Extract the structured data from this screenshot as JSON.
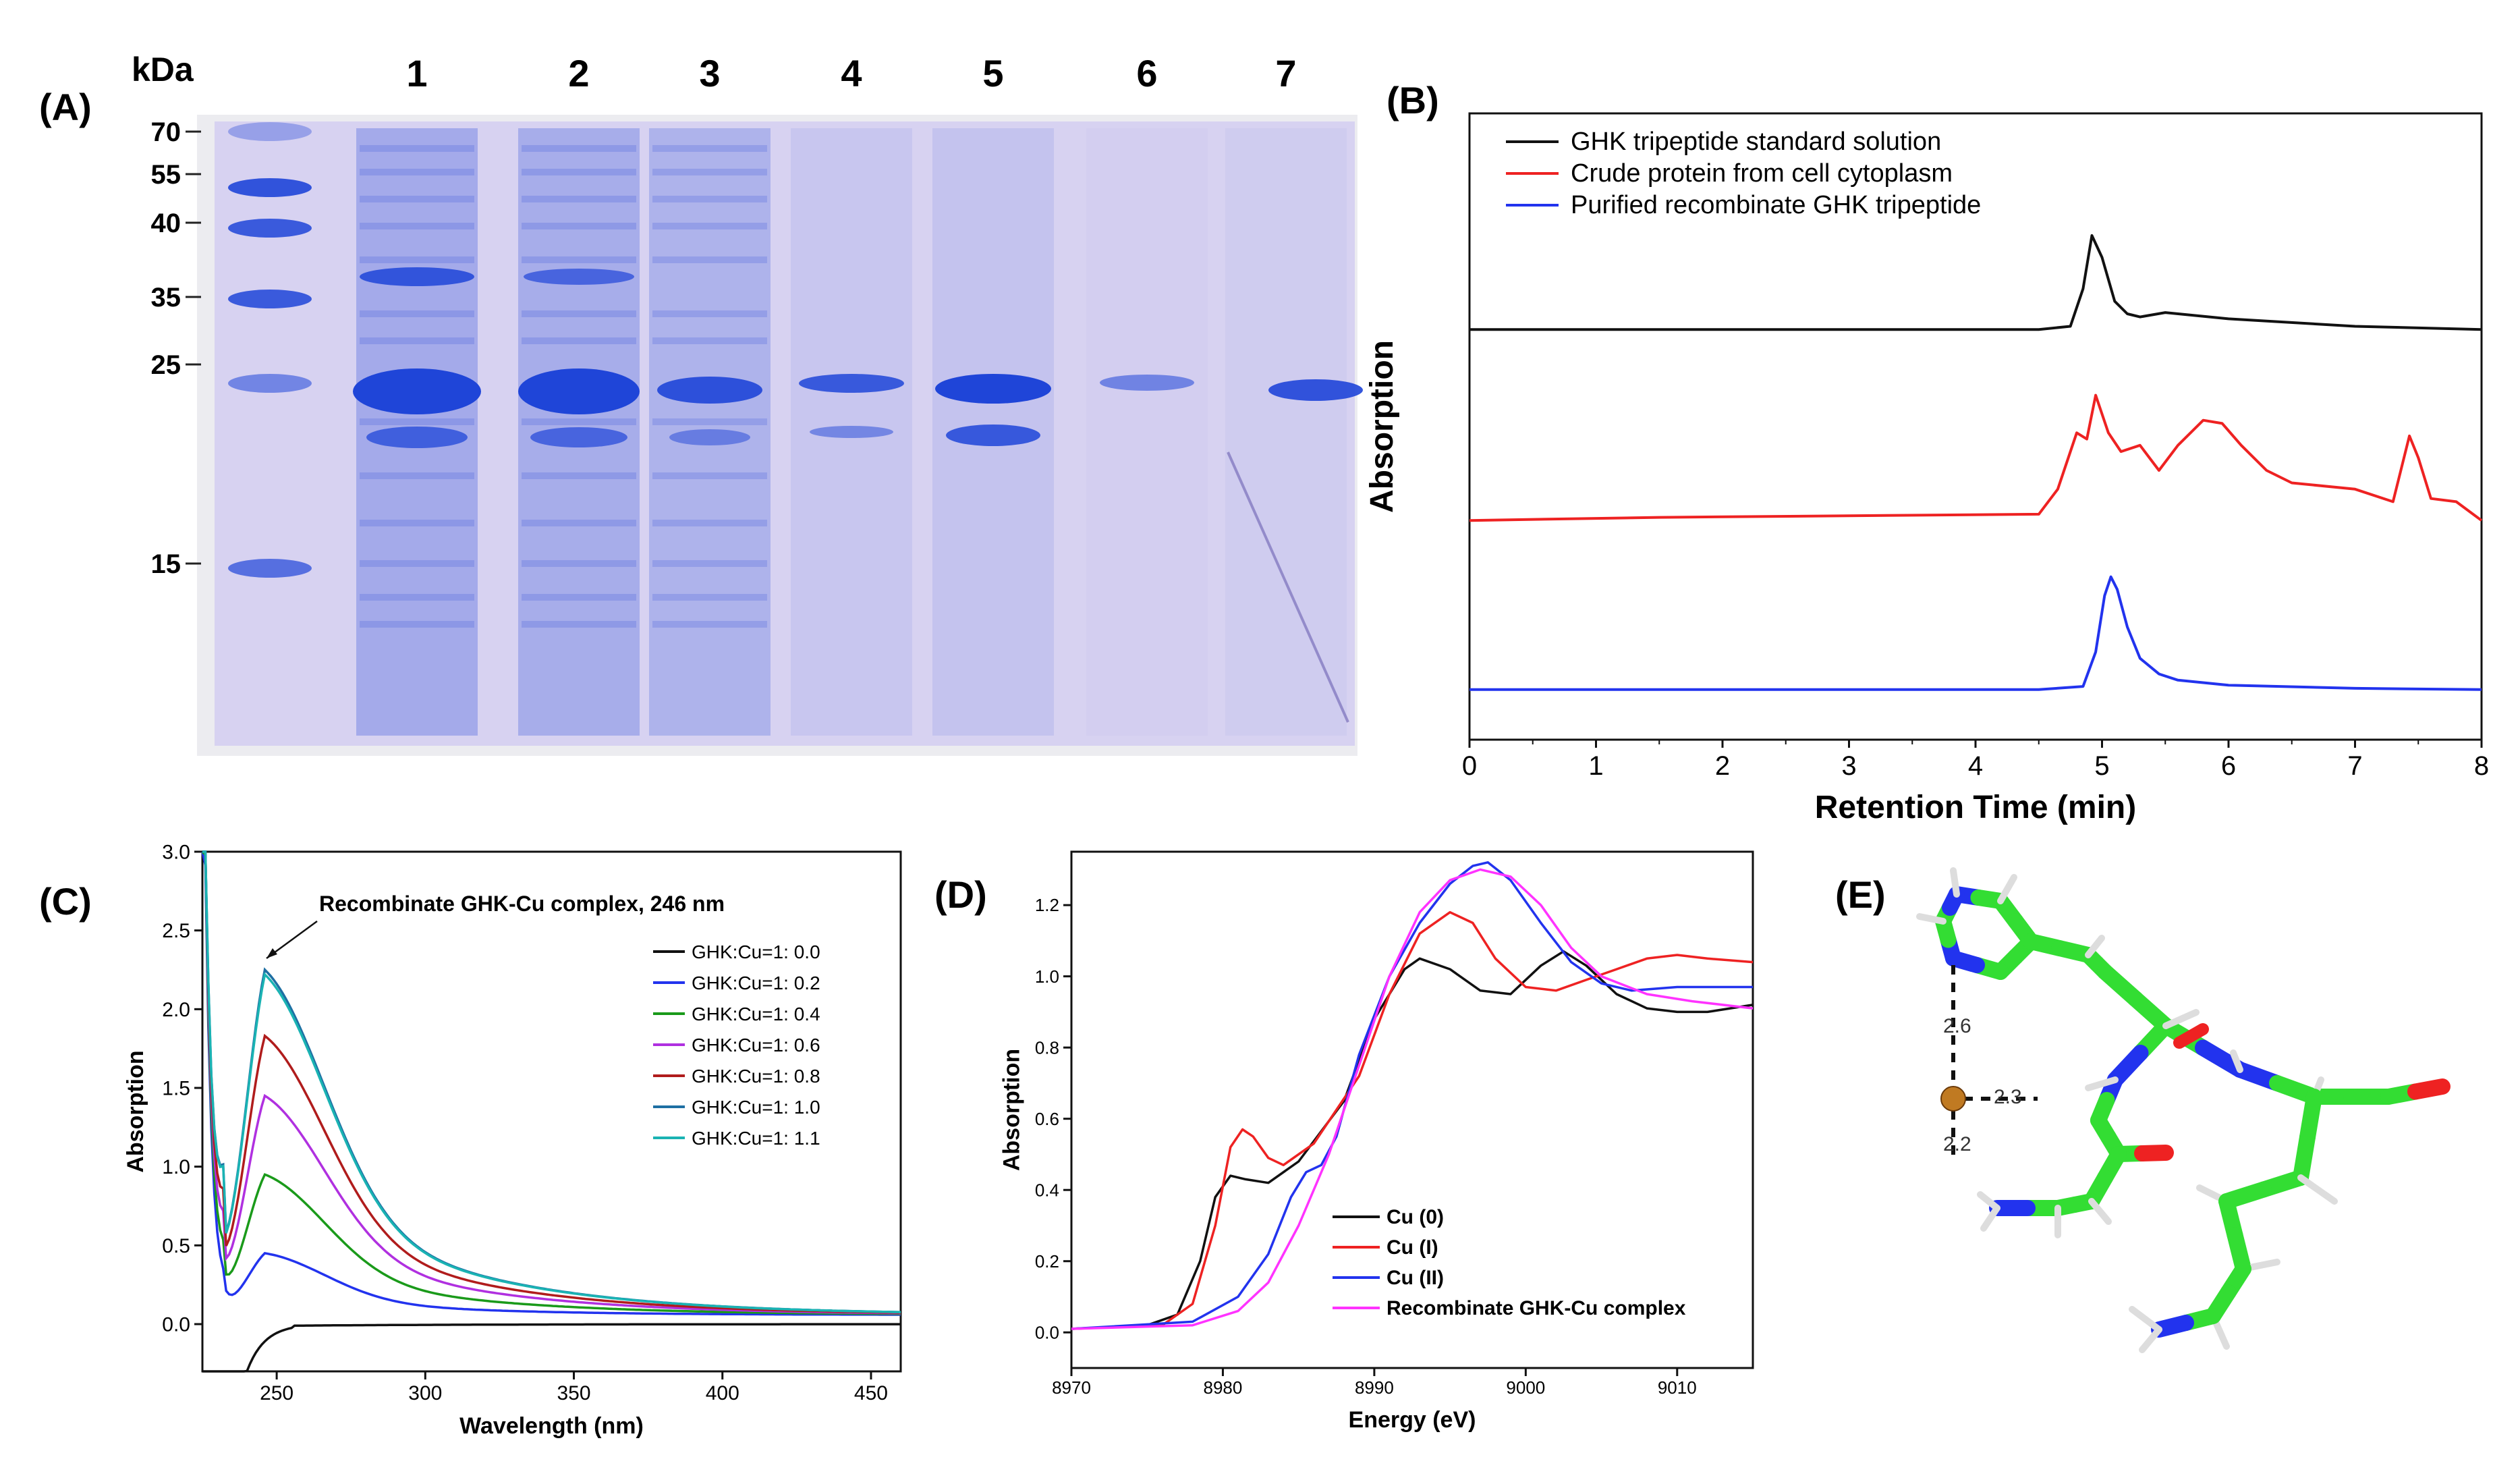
{
  "colors": {
    "gel_bg": "#d7d2f1",
    "band": "#1f45d8",
    "black": "#111111",
    "red": "#ee2222",
    "blue": "#2233ee",
    "green": "#1a9a1a",
    "purple": "#b030e0",
    "darkred": "#b01c1c",
    "steelblue": "#1e6fa3",
    "cyan": "#1ab3b3",
    "magenta": "#ff33ff",
    "carbon": "#33dd33",
    "nitrogen": "#2233ee",
    "oxygen": "#ee2222",
    "hydrogen": "#dddddd",
    "copper": "#c07a22"
  },
  "panels": {
    "a": {
      "label": "(A)",
      "kda_label": "kDa",
      "lanes": [
        "1",
        "2",
        "3",
        "4",
        "5",
        "6",
        "7"
      ],
      "markers": [
        "70",
        "55",
        "40",
        "35",
        "25",
        "15"
      ],
      "marker_kda": [
        70,
        55,
        40,
        35,
        25,
        15
      ]
    },
    "b": {
      "label": "(B)"
    },
    "c": {
      "label": "(C)"
    },
    "d": {
      "label": "(D)"
    },
    "e": {
      "label": "(E)",
      "distances": [
        "2.6",
        "2.3",
        "2.2"
      ]
    }
  },
  "chart_data": [
    {
      "id": "B",
      "type": "line",
      "title": "",
      "xlabel": "Retention Time (min)",
      "ylabel": "Absorption",
      "xlim": [
        0,
        8
      ],
      "xticks": [
        "0",
        "1",
        "2",
        "3",
        "4",
        "5",
        "6",
        "7",
        "8"
      ],
      "yticks": [],
      "legend_position": "top-left",
      "series": [
        {
          "name": "GHK tripeptide standard solution",
          "color": "#111111",
          "x": [
            0,
            4.5,
            4.75,
            4.85,
            4.92,
            5.0,
            5.1,
            5.2,
            5.3,
            5.5,
            6.0,
            7.0,
            8.0
          ],
          "y": [
            6.55,
            6.55,
            6.6,
            7.2,
            8.05,
            7.7,
            7.0,
            6.8,
            6.75,
            6.82,
            6.72,
            6.6,
            6.55
          ]
        },
        {
          "name": "Crude protein from cell cytoplasm",
          "color": "#ee2222",
          "x": [
            0,
            1.5,
            4.5,
            4.65,
            4.8,
            4.88,
            4.95,
            5.05,
            5.15,
            5.3,
            5.45,
            5.6,
            5.8,
            5.95,
            6.1,
            6.3,
            6.5,
            7.0,
            7.3,
            7.43,
            7.5,
            7.6,
            7.8,
            8.0
          ],
          "y": [
            3.5,
            3.55,
            3.6,
            4.0,
            4.9,
            4.8,
            5.5,
            4.9,
            4.6,
            4.7,
            4.3,
            4.7,
            5.1,
            5.05,
            4.7,
            4.3,
            4.1,
            4.0,
            3.8,
            4.85,
            4.5,
            3.85,
            3.8,
            3.5
          ]
        },
        {
          "name": "Purified recombinate GHK tripeptide",
          "color": "#2233ee",
          "x": [
            0,
            4.5,
            4.85,
            4.95,
            5.02,
            5.07,
            5.12,
            5.2,
            5.3,
            5.45,
            5.6,
            6.0,
            7.0,
            8.0
          ],
          "y": [
            0.8,
            0.8,
            0.85,
            1.4,
            2.3,
            2.6,
            2.4,
            1.8,
            1.3,
            1.05,
            0.95,
            0.87,
            0.82,
            0.8
          ]
        }
      ]
    },
    {
      "id": "C",
      "type": "line",
      "title": "",
      "annotation": "Recombinate GHK-Cu complex, 246 nm",
      "xlabel": "Wavelength (nm)",
      "ylabel": "Absorption",
      "xlim": [
        225,
        460
      ],
      "ylim": [
        -0.3,
        3.0
      ],
      "xticks": [
        "250",
        "300",
        "350",
        "400",
        "450"
      ],
      "yticks": [
        "0.0",
        "0.5",
        "1.0",
        "1.5",
        "2.0",
        "2.5",
        "3.0"
      ],
      "legend_position": "center-right",
      "series": [
        {
          "name": "GHK:Cu=1: 0.0",
          "color": "#111111",
          "ratio": 0.0,
          "peak": 0.0
        },
        {
          "name": "GHK:Cu=1: 0.2",
          "color": "#2233ee",
          "ratio": 0.2,
          "peak": 0.45
        },
        {
          "name": "GHK:Cu=1: 0.4",
          "color": "#1a9a1a",
          "ratio": 0.4,
          "peak": 0.95
        },
        {
          "name": "GHK:Cu=1: 0.6",
          "color": "#b030e0",
          "ratio": 0.6,
          "peak": 1.45
        },
        {
          "name": "GHK:Cu=1: 0.8",
          "color": "#b01c1c",
          "ratio": 0.8,
          "peak": 1.83
        },
        {
          "name": "GHK:Cu=1: 1.0",
          "color": "#1e6fa3",
          "ratio": 1.0,
          "peak": 2.25
        },
        {
          "name": "GHK:Cu=1: 1.1",
          "color": "#1ab3b3",
          "ratio": 1.1,
          "peak": 2.22
        }
      ]
    },
    {
      "id": "D",
      "type": "line",
      "title": "",
      "xlabel": "Energy (eV)",
      "ylabel": "Absorption",
      "xlim": [
        8970,
        9015
      ],
      "ylim": [
        -0.1,
        1.35
      ],
      "xticks": [
        "8970",
        "8980",
        "8990",
        "9000",
        "9010"
      ],
      "yticks": [
        "0.0",
        "0.2",
        "0.4",
        "0.6",
        "0.8",
        "1.0",
        "1.2"
      ],
      "legend_position": "bottom-right",
      "series": [
        {
          "name": "Cu (0)",
          "color": "#111111",
          "x": [
            8970,
            8975,
            8977,
            8978.5,
            8979.5,
            8980.5,
            8981.5,
            8983,
            8985,
            8988,
            8990,
            8992,
            8993,
            8995,
            8997,
            8999,
            9001,
            9002.5,
            9004,
            9006,
            9008,
            9010,
            9012,
            9015
          ],
          "y": [
            0.01,
            0.02,
            0.05,
            0.2,
            0.38,
            0.44,
            0.43,
            0.42,
            0.48,
            0.65,
            0.88,
            1.02,
            1.05,
            1.02,
            0.96,
            0.95,
            1.03,
            1.07,
            1.03,
            0.95,
            0.91,
            0.9,
            0.9,
            0.92
          ]
        },
        {
          "name": "Cu (I)",
          "color": "#ee2222",
          "x": [
            8970,
            8976,
            8978,
            8979.5,
            8980.5,
            8981.3,
            8982,
            8983,
            8984,
            8986,
            8989,
            8991,
            8993,
            8995,
            8996.5,
            8998,
            9000,
            9002,
            9004,
            9006,
            9008,
            9010,
            9012,
            9015
          ],
          "y": [
            0.01,
            0.02,
            0.08,
            0.3,
            0.52,
            0.57,
            0.55,
            0.49,
            0.47,
            0.53,
            0.72,
            0.95,
            1.12,
            1.18,
            1.15,
            1.05,
            0.97,
            0.96,
            0.99,
            1.02,
            1.05,
            1.06,
            1.05,
            1.04
          ]
        },
        {
          "name": "Cu (II)",
          "color": "#2233ee",
          "x": [
            8970,
            8978,
            8981,
            8983,
            8984.5,
            8985.5,
            8986.5,
            8987.5,
            8989,
            8991,
            8993,
            8995,
            8996.5,
            8997.5,
            8999,
            9001,
            9003,
            9005,
            9007,
            9010,
            9015
          ],
          "y": [
            0.01,
            0.03,
            0.1,
            0.22,
            0.38,
            0.45,
            0.47,
            0.55,
            0.78,
            1.0,
            1.15,
            1.26,
            1.31,
            1.32,
            1.27,
            1.15,
            1.04,
            0.98,
            0.96,
            0.97,
            0.97
          ]
        },
        {
          "name": "Recombinate GHK-Cu complex",
          "color": "#ff33ff",
          "x": [
            8970,
            8978,
            8981,
            8983,
            8985,
            8987,
            8989,
            8991,
            8993,
            8995,
            8997,
            8999,
            9001,
            9003,
            9005,
            9008,
            9011,
            9015
          ],
          "y": [
            0.01,
            0.02,
            0.06,
            0.14,
            0.3,
            0.5,
            0.75,
            1.0,
            1.18,
            1.27,
            1.3,
            1.28,
            1.2,
            1.08,
            1.0,
            0.95,
            0.93,
            0.91
          ]
        }
      ]
    }
  ]
}
